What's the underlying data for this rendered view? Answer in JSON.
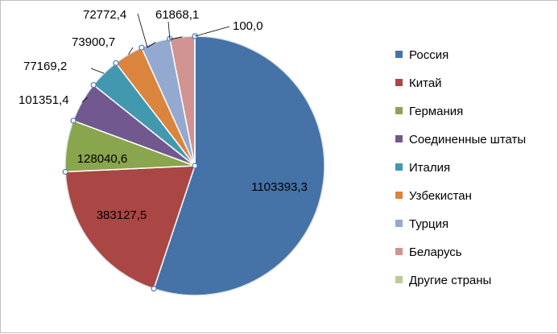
{
  "chart_data": {
    "type": "pie",
    "categories": [
      "Россия",
      "Китай",
      "Германия",
      "Соединенные  штаты",
      "Италия",
      "Узбекистан",
      "Турция",
      "Беларусь",
      "Другие страны"
    ],
    "values": [
      1103393.3,
      383127.5,
      128040.6,
      101351.4,
      77169.2,
      73900.7,
      72772.4,
      61868.1,
      100.0
    ],
    "value_labels": [
      "1103393,3",
      "383127,5",
      "128040,6",
      "101351,4",
      "77169,2",
      "73900,7",
      "72772,4",
      "61868,1",
      "100,0"
    ],
    "colors": [
      "#4572A7",
      "#AA4643",
      "#89A54E",
      "#71588F",
      "#4198AF",
      "#DB843D",
      "#93A9CF",
      "#D19392",
      "#B9CD96"
    ],
    "start_angle": "12 o'clock",
    "direction": "clockwise",
    "legend_position": "right",
    "title": ""
  }
}
